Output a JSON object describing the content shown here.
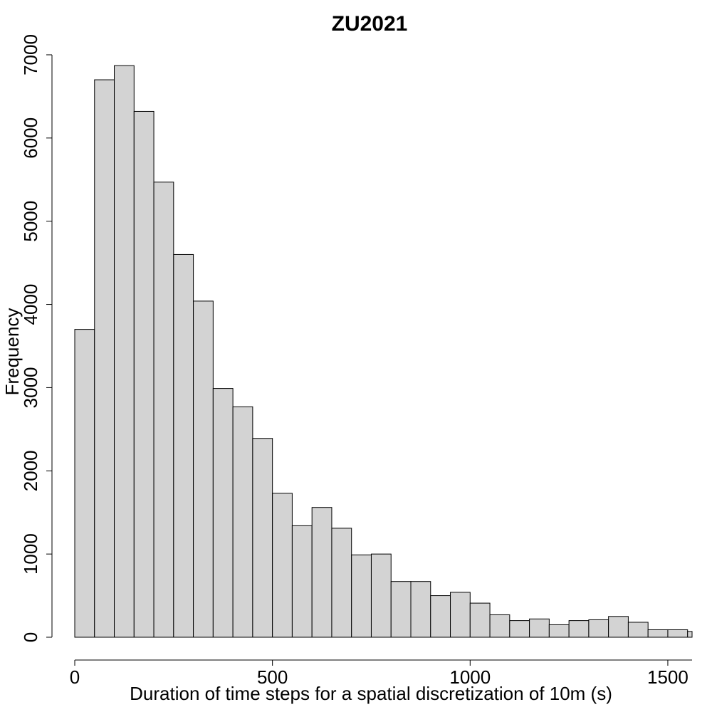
{
  "chart_data": {
    "type": "bar",
    "title": "ZU2021",
    "xlabel": "Duration of time steps for a spatial discretization of 10m (s)",
    "ylabel": "Frequency",
    "bin_edges": [
      0,
      50,
      100,
      150,
      200,
      250,
      300,
      350,
      400,
      450,
      500,
      550,
      600,
      650,
      700,
      750,
      800,
      850,
      900,
      950,
      1000,
      1050,
      1100,
      1150,
      1200,
      1250,
      1300,
      1350,
      1400,
      1450,
      1500,
      1550,
      1600
    ],
    "values": [
      3700,
      6700,
      6870,
      6320,
      5470,
      4600,
      4040,
      2990,
      2770,
      2390,
      1730,
      1340,
      1560,
      1310,
      990,
      1000,
      670,
      670,
      500,
      540,
      410,
      270,
      200,
      220,
      150,
      200,
      210,
      250,
      180,
      90,
      90,
      70
    ],
    "x_ticks": [
      0,
      500,
      1000,
      1500
    ],
    "x_tick_labels": [
      "0",
      "500",
      "1000",
      "1500"
    ],
    "y_ticks": [
      0,
      1000,
      2000,
      3000,
      4000,
      5000,
      6000,
      7000
    ],
    "y_tick_labels": [
      "0",
      "1000",
      "2000",
      "3000",
      "4000",
      "5000",
      "6000",
      "7000"
    ],
    "xlim": [
      0,
      1560
    ],
    "ylim": [
      0,
      7000
    ],
    "grid": false,
    "legend": "none",
    "colors": {
      "bar_fill": "#d3d3d3",
      "bar_stroke": "#000000",
      "axis": "#000000"
    }
  }
}
